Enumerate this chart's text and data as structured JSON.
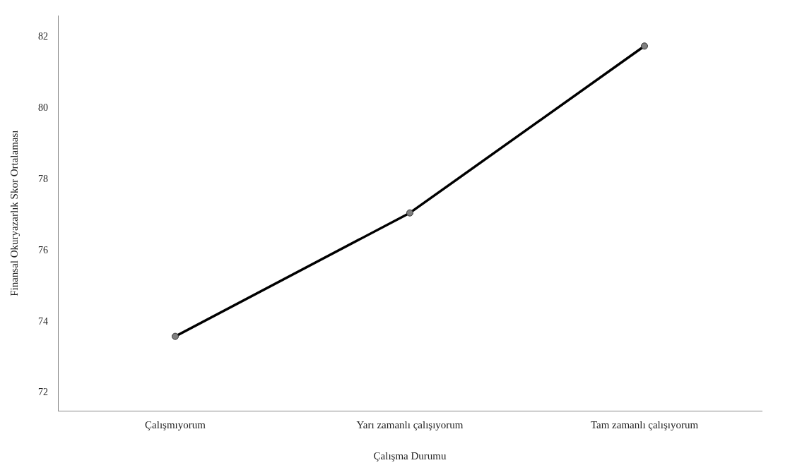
{
  "chart_data": {
    "type": "line",
    "xlabel": "Çalışma Durumu",
    "ylabel": "Finansal Okuryazarlık Skor Ortalaması",
    "categories": [
      "Çalışmıyorum",
      "Yarı zamanlı çalışıyorum",
      "Tam zamanlı çalışıyorum"
    ],
    "series": [
      {
        "color": "#000000",
        "values": [
          73.59,
          77.06,
          81.75
        ]
      }
    ],
    "ylim": [
      71.5,
      82.6
    ],
    "yticks": [
      72,
      74,
      76,
      78,
      80,
      82
    ],
    "grid": false,
    "legend": false,
    "marker": "circle",
    "line_style": "solid"
  }
}
